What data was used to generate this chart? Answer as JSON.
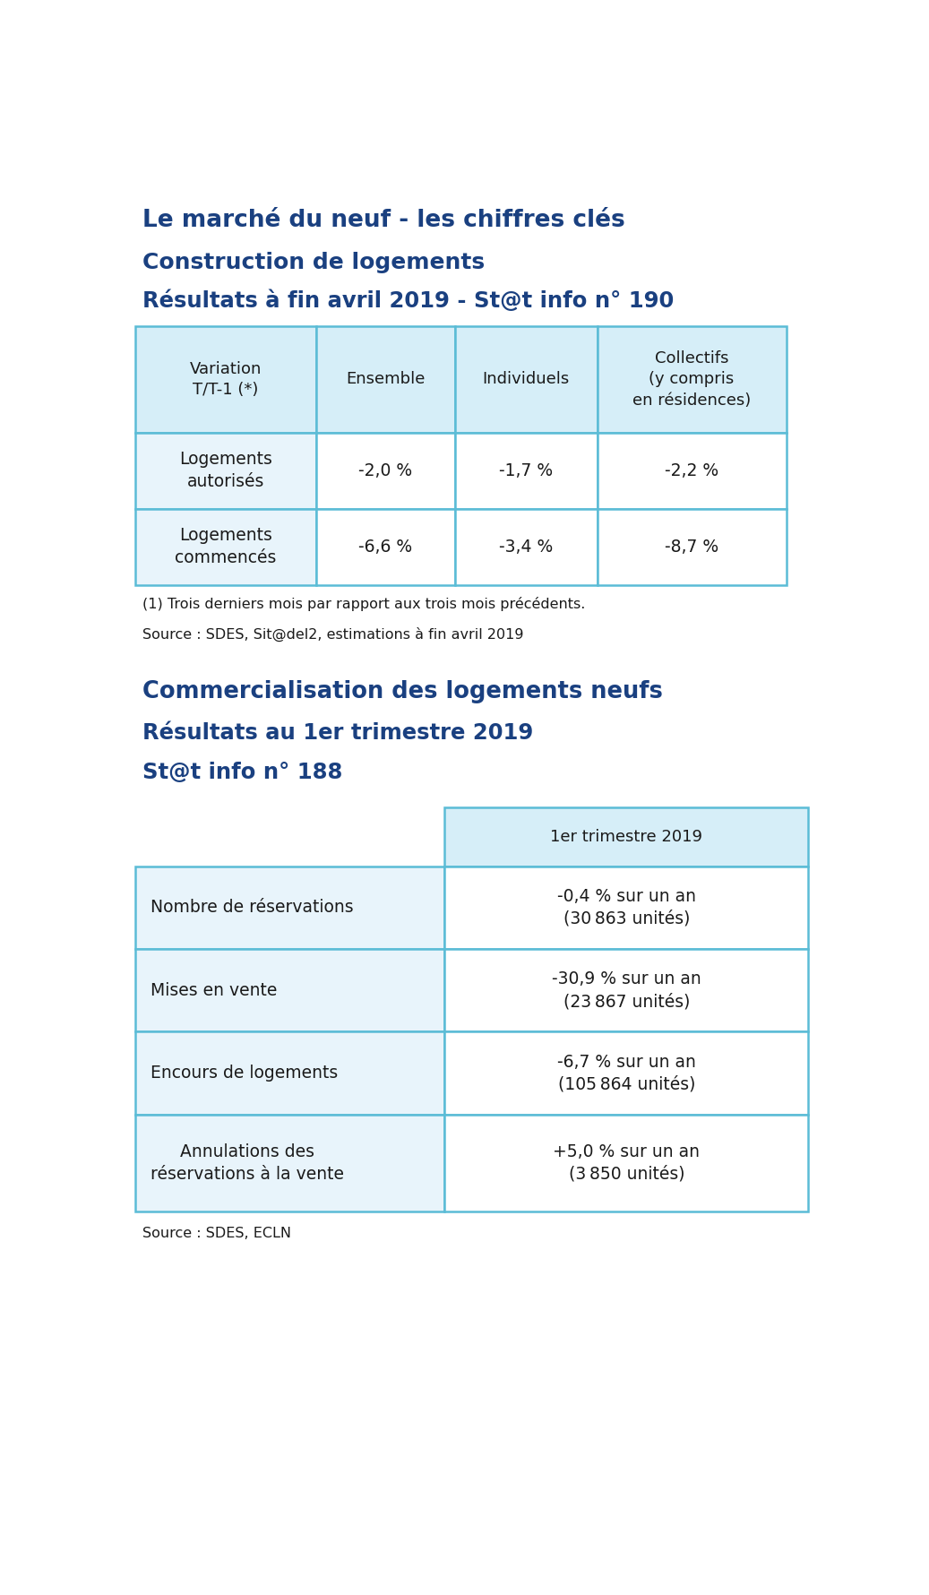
{
  "title_line1": "Le marché du neuf - les chiffres clés",
  "title_line2": "Construction de logements",
  "title_line3": "Résultats à fin avril 2019 - St@t info n° 190",
  "title_color": "#1a4080",
  "table1_header": [
    "Variation\nT/T-1 (*)",
    "Ensemble",
    "Individuels",
    "Collectifs\n(y compris\nen résidences)"
  ],
  "table1_rows": [
    [
      "Logements\nautorisés",
      "-2,0 %",
      "-1,7 %",
      "-2,2 %"
    ],
    [
      "Logements\ncommencés",
      "-6,6 %",
      "-3,4 %",
      "-8,7 %"
    ]
  ],
  "note1_line1": "(1) Trois derniers mois par rapport aux trois mois précédents.",
  "note1_line2": "Source : SDES, Sit@del2, estimations à fin avril 2019",
  "title2_line1": "Commercialisation des logements neufs",
  "title2_line2": "Résultats au 1er trimestre 2019",
  "title2_line3": "St@t info n° 188",
  "table2_header": "1er trimestre 2019",
  "table2_rows": [
    [
      "Nombre de réservations",
      "-0,4 % sur un an\n(30 863 unités)"
    ],
    [
      "Mises en vente",
      "-30,9 % sur un an\n(23 867 unités)"
    ],
    [
      "Encours de logements",
      "-6,7 % sur un an\n(105 864 unités)"
    ],
    [
      "Annulations des\nréservations à la vente",
      "+5,0 % sur un an\n(3 850 unités)"
    ]
  ],
  "note2": "Source : SDES, ECLN",
  "bg_color": "#ffffff",
  "table_border_color": "#5bbcd6",
  "table_bg_header": "#d6eef8",
  "table_bg_cell": "#e8f4fb",
  "table_bg_white": "#ffffff",
  "text_dark": "#1a1a1a",
  "text_blue_dark": "#1a4080"
}
